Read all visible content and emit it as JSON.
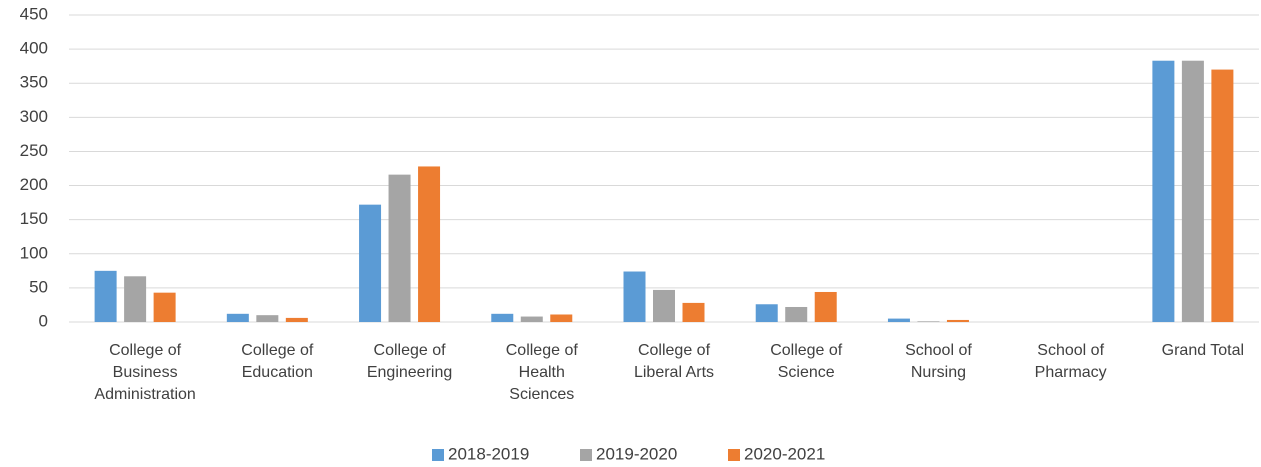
{
  "chart_data": {
    "type": "bar",
    "categories": [
      "College of Business Administration",
      "College of Education",
      "College of Engineering",
      "College of Health Sciences",
      "College of Liberal Arts",
      "College of Science",
      "School of Nursing",
      "School of Pharmacy",
      "Grand Total"
    ],
    "series": [
      {
        "name": "2018-2019",
        "color": "#5b9bd5",
        "values": [
          75,
          12,
          172,
          12,
          74,
          26,
          5,
          0,
          383
        ]
      },
      {
        "name": "2019-2020",
        "color": "#a5a5a5",
        "values": [
          67,
          10,
          216,
          8,
          47,
          22,
          1,
          0,
          383
        ]
      },
      {
        "name": "2020-2021",
        "color": "#ed7d31",
        "values": [
          43,
          6,
          228,
          11,
          28,
          44,
          3,
          0,
          370
        ]
      }
    ],
    "ylim": [
      0,
      450
    ],
    "yticks": [
      0,
      50,
      100,
      150,
      200,
      250,
      300,
      350,
      400,
      450
    ],
    "grid": true,
    "legend": "bottom"
  }
}
